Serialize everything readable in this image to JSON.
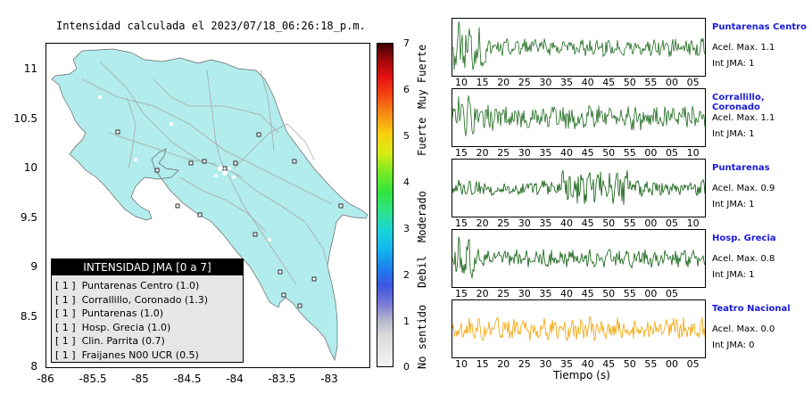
{
  "map": {
    "title": "Intensidad calculada el 2023/07/18_06:26:18_p.m.",
    "y_ticks": [
      "11",
      "10.5",
      "10",
      "9.5",
      "9",
      "8.5",
      "8"
    ],
    "x_ticks": [
      "-86",
      "-85.5",
      "-85",
      "-84.5",
      "-84",
      "-83.5",
      "-83"
    ],
    "land_color": "#b2ecec",
    "road_color": "#aaaaaa"
  },
  "colorbar": {
    "values": [
      "7",
      "6",
      "5",
      "4",
      "3",
      "2",
      "1",
      "0"
    ],
    "labels": [
      "Muy Fuerte",
      "Fuerte",
      "Moderado",
      "Debil",
      "No sentido"
    ]
  },
  "legend": {
    "title": "INTENSIDAD JMA [0 a 7]",
    "rows": [
      "[ 1 ]  Puntarenas Centro (1.0)",
      "[ 1 ]  Corrallillo, Coronado (1.3)",
      "[ 1 ]  Puntarenas (1.0)",
      "[ 1 ]  Hosp. Grecia (1.0)",
      "[ 1 ]  Clin. Parrita (0.7)",
      "[ 1 ]  Fraijanes N00 UCR (0.5)"
    ]
  },
  "traces": [
    {
      "name": "Puntarenas Centro",
      "acel": "Acel. Max. 1.1",
      "jma": "Int JMA: 1",
      "color": "#1f6b1f",
      "ticks": [
        "10",
        "15",
        "20",
        "25",
        "30",
        "35",
        "40",
        "45",
        "50",
        "55",
        "00",
        "05"
      ]
    },
    {
      "name": "Corrallillo, Coronado",
      "acel": "Acel. Max. 1.1",
      "jma": "Int JMA: 1",
      "color": "#1f6b1f",
      "ticks": [
        "15",
        "20",
        "25",
        "30",
        "35",
        "40",
        "45",
        "50",
        "55",
        "00",
        "05",
        "10"
      ]
    },
    {
      "name": "Puntarenas",
      "acel": "Acel. Max. 0.9",
      "jma": "Int JMA: 1",
      "color": "#0b5a0b",
      "ticks": [
        "15",
        "20",
        "25",
        "30",
        "35",
        "40",
        "45",
        "50",
        "55",
        "00",
        "05",
        "10"
      ]
    },
    {
      "name": "Hosp. Grecia",
      "acel": "Acel. Max. 0.8",
      "jma": "Int JMA: 1",
      "color": "#0f5f0f",
      "ticks": [
        "15",
        "20",
        "25",
        "30",
        "35",
        "40",
        "45",
        "50",
        "55",
        "00",
        "05"
      ]
    },
    {
      "name": "Teatro Nacional",
      "acel": "Acel. Max. 0.0",
      "jma": "Int JMA: 0",
      "color": "#f2a200",
      "ticks": [
        "10",
        "15",
        "20",
        "25",
        "30",
        "35",
        "40",
        "45",
        "50",
        "55",
        "00",
        "05"
      ]
    }
  ],
  "xlabel": "Tiempo (s)"
}
